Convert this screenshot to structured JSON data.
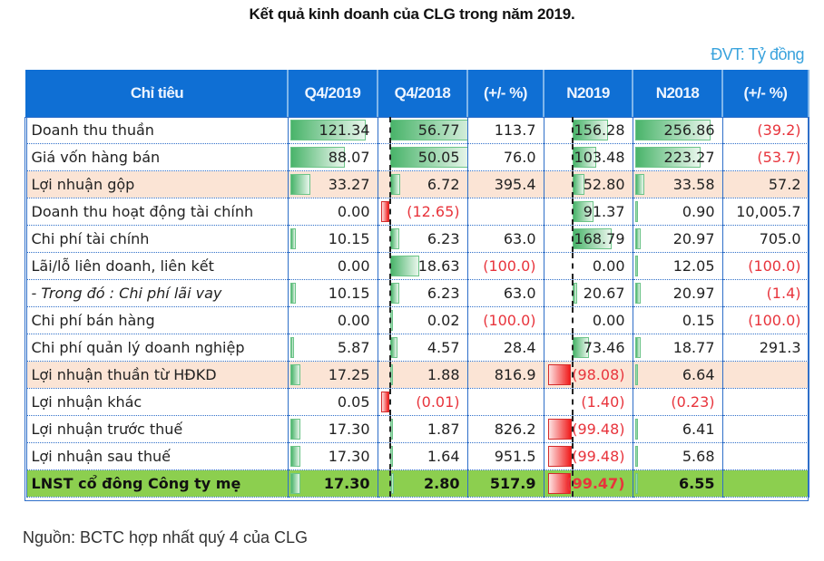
{
  "title": "Kết quả kinh doanh của CLG trong năm 2019.",
  "unit_note": "ĐVT: Tỷ đồng",
  "source": "Nguồn: BCTC hợp nhất quý 4 của CLG",
  "colors": {
    "header_bg": "#0f6fd4",
    "highlight_row_bg": "#fbe4d5",
    "total_row_bg": "#8ccf4f",
    "negative_text": "#e8343c",
    "positive_bar": "#49b46a",
    "negative_bar": "#f01c1c",
    "unit_note": "#3aa3dd"
  },
  "table": {
    "headers": [
      "Chỉ tiêu",
      "Q4/2019",
      "Q4/2018",
      "(+/- %)",
      "N2019",
      "N2018",
      "(+/- %)"
    ],
    "rows": [
      {
        "label": "Doanh thu thuần",
        "style": "normal",
        "cells": [
          "121.34",
          "56.77",
          "113.7",
          "156.28",
          "256.86",
          "(39.2)"
        ],
        "values": [
          121.34,
          56.77,
          113.7,
          156.28,
          256.86,
          -39.2
        ]
      },
      {
        "label": "Giá vốn hàng bán",
        "style": "normal",
        "cells": [
          "88.07",
          "50.05",
          "76.0",
          "103.48",
          "223.27",
          "(53.7)"
        ],
        "values": [
          88.07,
          50.05,
          76.0,
          103.48,
          223.27,
          -53.7
        ]
      },
      {
        "label": "Lợi nhuận gộp",
        "style": "highlight",
        "cells": [
          "33.27",
          "6.72",
          "395.4",
          "52.80",
          "33.58",
          "57.2"
        ],
        "values": [
          33.27,
          6.72,
          395.4,
          52.8,
          33.58,
          57.2
        ]
      },
      {
        "label": "Doanh thu hoạt động tài chính",
        "style": "normal",
        "cells": [
          "0.00",
          "(12.65)",
          "",
          "91.37",
          "0.90",
          "10,005.7"
        ],
        "values": [
          0.0,
          -12.65,
          null,
          91.37,
          0.9,
          10005.7
        ]
      },
      {
        "label": "Chi phí tài chính",
        "style": "normal",
        "cells": [
          "10.15",
          "6.23",
          "63.0",
          "168.79",
          "20.97",
          "705.0"
        ],
        "values": [
          10.15,
          6.23,
          63.0,
          168.79,
          20.97,
          705.0
        ]
      },
      {
        "label": "Lãi/lỗ liên doanh, liên kết",
        "style": "normal",
        "cells": [
          "0.00",
          "18.63",
          "(100.0)",
          "0.00",
          "12.05",
          "(100.0)"
        ],
        "values": [
          0.0,
          18.63,
          -100.0,
          0.0,
          12.05,
          -100.0
        ]
      },
      {
        "label": "- Trong đó : Chi phí lãi vay",
        "style": "italic",
        "cells": [
          "10.15",
          "6.23",
          "63.0",
          "20.67",
          "20.97",
          "(1.4)"
        ],
        "values": [
          10.15,
          6.23,
          63.0,
          20.67,
          20.97,
          -1.4
        ]
      },
      {
        "label": "Chi phí bán hàng",
        "style": "normal",
        "cells": [
          "0.00",
          "0.02",
          "(100.0)",
          "0.00",
          "0.15",
          "(100.0)"
        ],
        "values": [
          0.0,
          0.02,
          -100.0,
          0.0,
          0.15,
          -100.0
        ]
      },
      {
        "label": "Chi phí quản lý doanh nghiệp",
        "style": "normal",
        "cells": [
          "5.87",
          "4.57",
          "28.4",
          "73.46",
          "18.77",
          "291.3"
        ],
        "values": [
          5.87,
          4.57,
          28.4,
          73.46,
          18.77,
          291.3
        ]
      },
      {
        "label": "Lợi nhuận thuần từ HĐKD",
        "style": "highlight",
        "cells": [
          "17.25",
          "1.88",
          "816.9",
          "(98.08)",
          "6.64",
          ""
        ],
        "values": [
          17.25,
          1.88,
          816.9,
          -98.08,
          6.64,
          null
        ]
      },
      {
        "label": "Lợi nhuận khác",
        "style": "normal",
        "cells": [
          "0.05",
          "(0.01)",
          "",
          "(1.40)",
          "(0.23)",
          ""
        ],
        "values": [
          0.05,
          -0.01,
          null,
          -1.4,
          -0.23,
          null
        ]
      },
      {
        "label": "Lợi nhuận trước thuế",
        "style": "normal",
        "cells": [
          "17.30",
          "1.87",
          "826.2",
          "(99.48)",
          "6.41",
          ""
        ],
        "values": [
          17.3,
          1.87,
          826.2,
          -99.48,
          6.41,
          null
        ]
      },
      {
        "label": "Lợi nhuận sau thuế",
        "style": "normal",
        "cells": [
          "17.30",
          "1.64",
          "951.5",
          "(99.48)",
          "5.68",
          ""
        ],
        "values": [
          17.3,
          1.64,
          951.5,
          -99.48,
          5.68,
          null
        ]
      },
      {
        "label": "LNST cổ đông Công ty mẹ",
        "style": "total",
        "cells": [
          "17.30",
          "2.80",
          "517.9",
          "(99.47)",
          "6.55",
          ""
        ],
        "values": [
          17.3,
          2.8,
          517.9,
          -99.47,
          6.55,
          null
        ]
      }
    ]
  }
}
